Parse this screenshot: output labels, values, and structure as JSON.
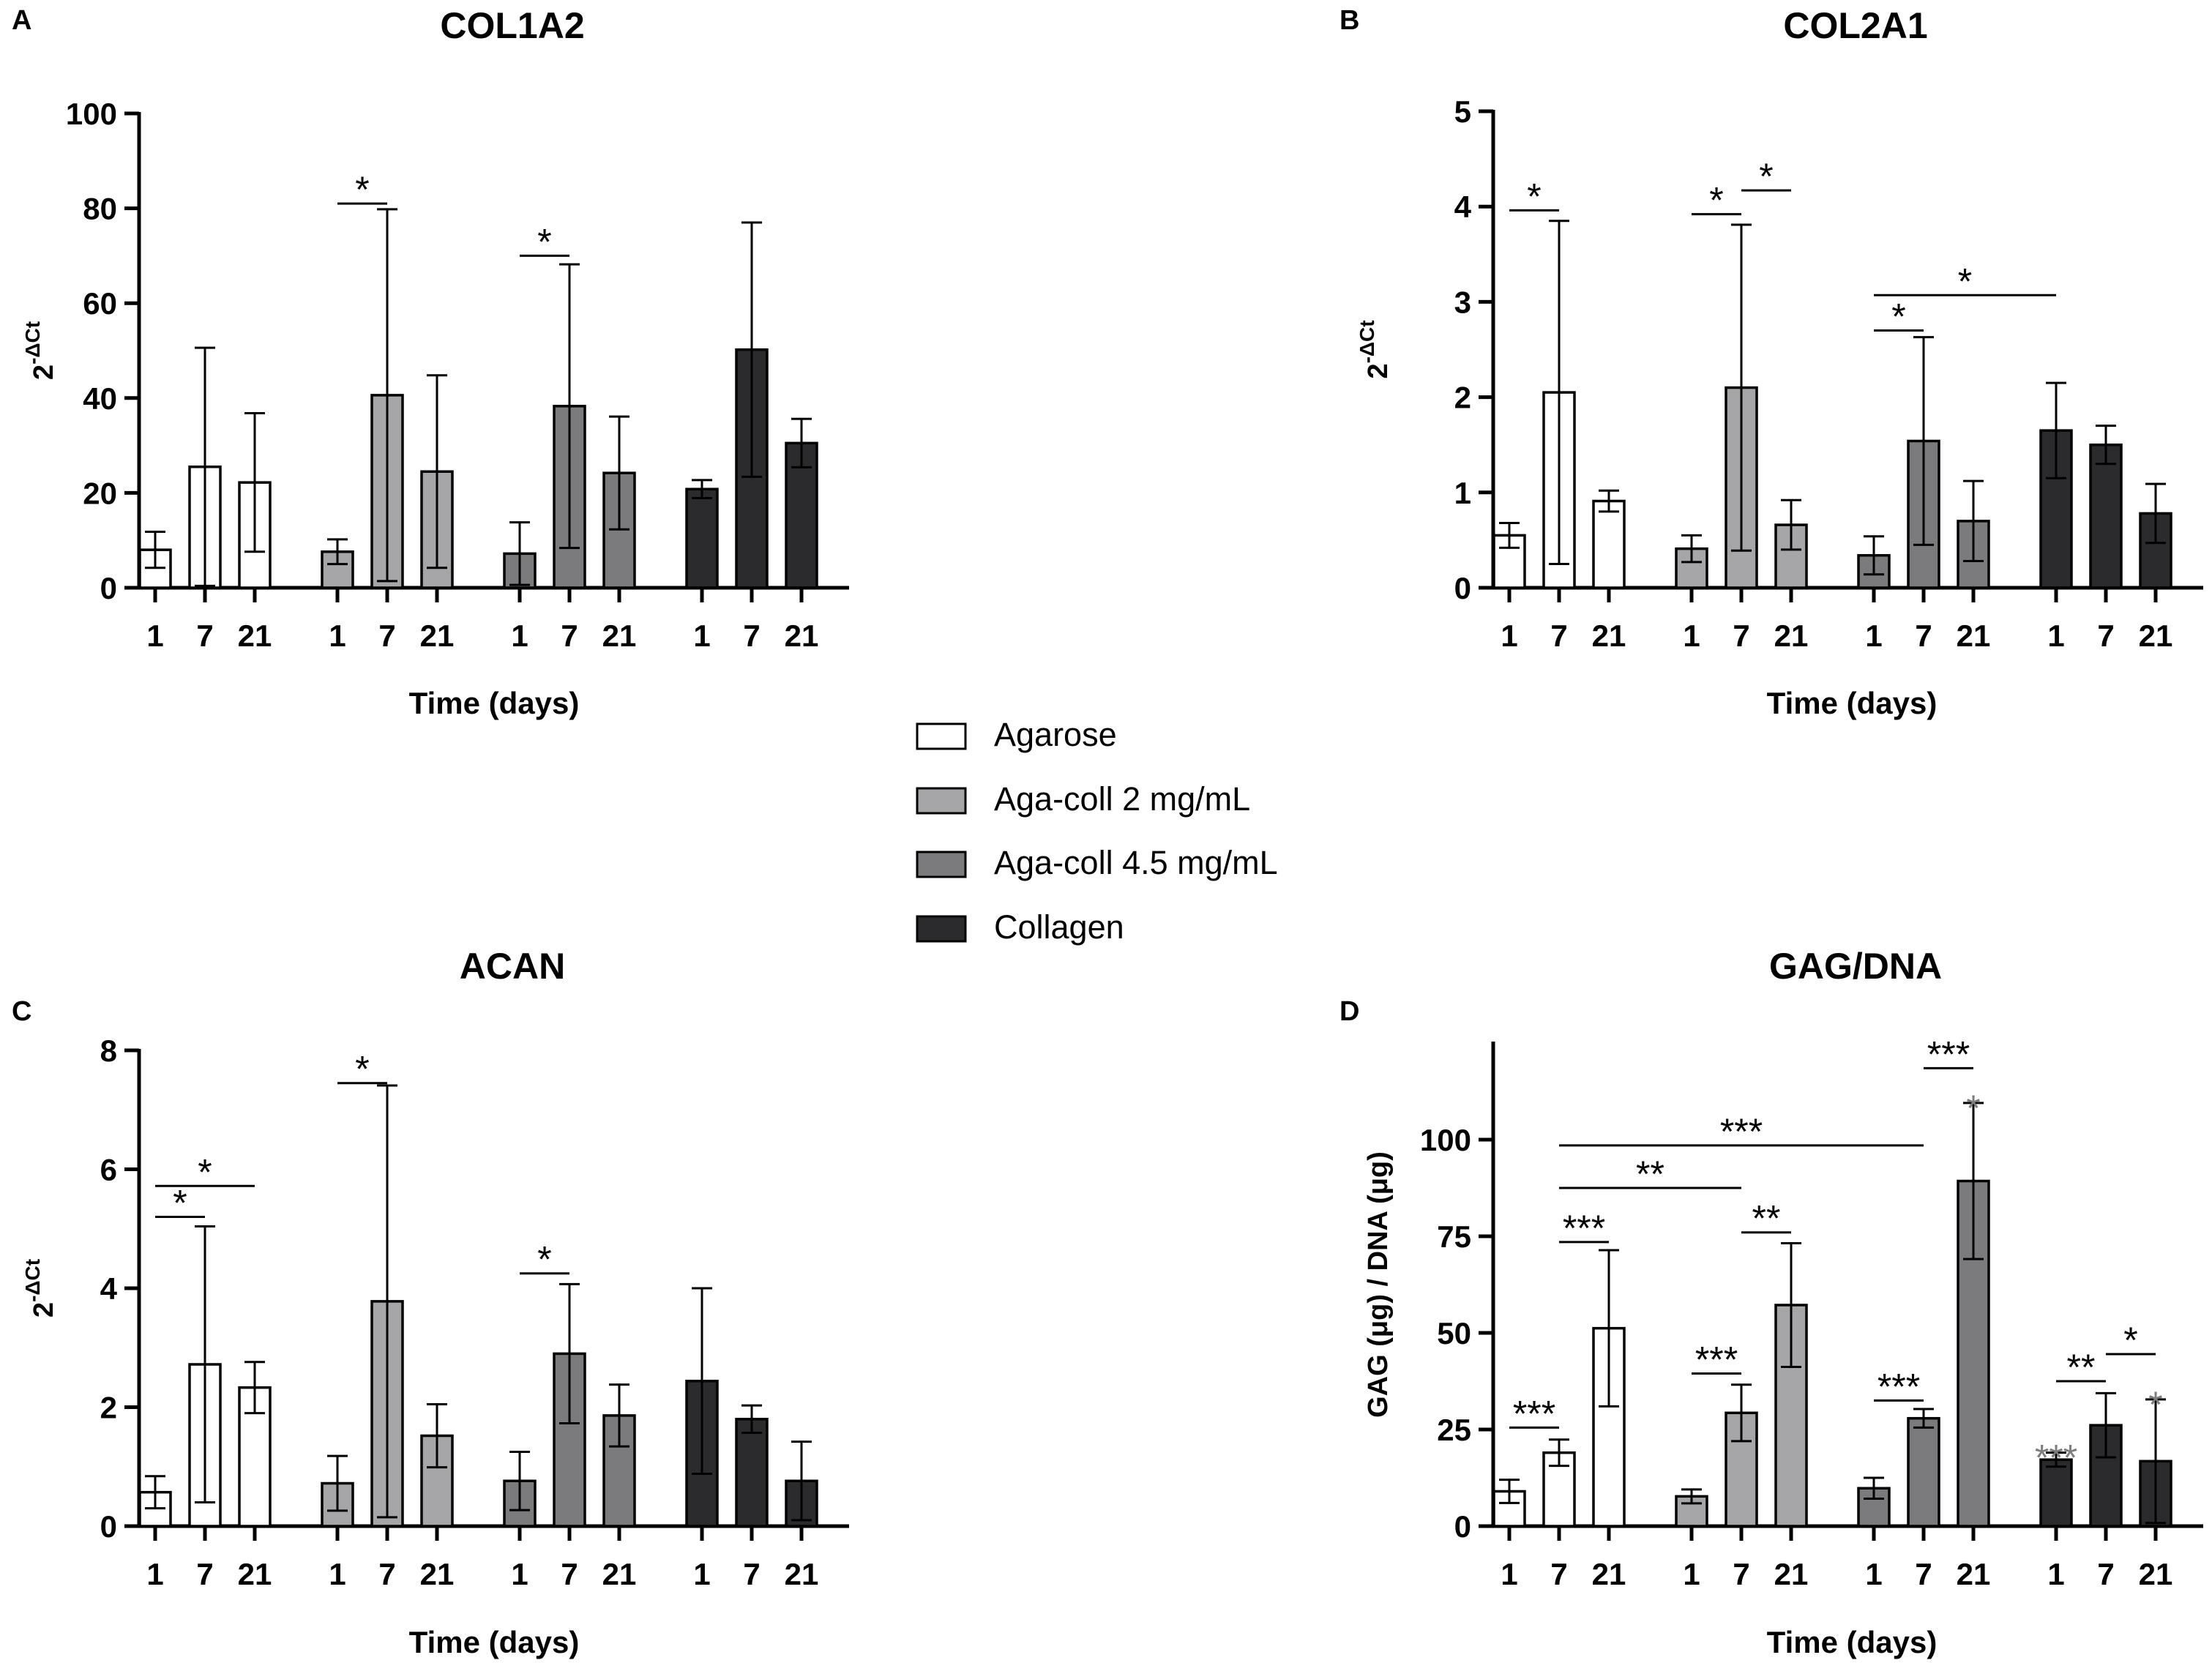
{
  "legend": {
    "items": [
      {
        "label": "Agarose",
        "color": "#ffffff"
      },
      {
        "label": "Aga-coll 2 mg/mL",
        "color": "#a6a6a8"
      },
      {
        "label": "Aga-coll 4.5 mg/mL",
        "color": "#7b7b7d"
      },
      {
        "label": "Collagen",
        "color": "#2b2b2d"
      }
    ]
  },
  "chart_data": [
    {
      "panel": "A",
      "type": "bar",
      "title": "COL1A2",
      "xlabel": "Time (days)",
      "ylabel": "2-ΔCt",
      "ylim": [
        0,
        100
      ],
      "yticks": [
        0,
        20,
        40,
        60,
        80,
        100
      ],
      "categories": [
        "1",
        "7",
        "21"
      ],
      "series": [
        {
          "name": "Agarose",
          "values": [
            8,
            25.5,
            22.2
          ],
          "errors": [
            3.8,
            25.1,
            14.6
          ]
        },
        {
          "name": "Aga-coll 2 mg/mL",
          "values": [
            7.6,
            40.6,
            24.5
          ],
          "errors": [
            2.6,
            39.2,
            20.3
          ]
        },
        {
          "name": "Aga-coll 4.5 mg/mL",
          "values": [
            7.2,
            38.3,
            24.2
          ],
          "errors": [
            6.6,
            29.9,
            11.9
          ]
        },
        {
          "name": "Collagen",
          "values": [
            20.8,
            50.2,
            30.5
          ],
          "errors": [
            1.9,
            26.8,
            5.1
          ]
        }
      ],
      "significance": [
        {
          "from": [
            1,
            0
          ],
          "to": [
            1,
            1
          ],
          "level": 81,
          "label": "*"
        },
        {
          "from": [
            2,
            0
          ],
          "to": [
            2,
            1
          ],
          "level": 70,
          "label": "*"
        }
      ]
    },
    {
      "panel": "B",
      "type": "bar",
      "title": "COL2A1",
      "xlabel": "Time (days)",
      "ylabel": "2-ΔCt",
      "ylim": [
        0,
        5
      ],
      "yticks": [
        0,
        1,
        2,
        3,
        4,
        5
      ],
      "categories": [
        "1",
        "7",
        "21"
      ],
      "series": [
        {
          "name": "Agarose",
          "values": [
            0.55,
            2.05,
            0.91
          ],
          "errors": [
            0.13,
            1.8,
            0.11
          ]
        },
        {
          "name": "Aga-coll 2 mg/mL",
          "values": [
            0.41,
            2.1,
            0.66
          ],
          "errors": [
            0.14,
            1.71,
            0.26
          ]
        },
        {
          "name": "Aga-coll 4.5 mg/mL",
          "values": [
            0.34,
            1.54,
            0.7
          ],
          "errors": [
            0.2,
            1.09,
            0.42
          ]
        },
        {
          "name": "Collagen",
          "values": [
            1.65,
            1.5,
            0.78
          ],
          "errors": [
            0.5,
            0.2,
            0.31
          ]
        }
      ],
      "significance": [
        {
          "from": [
            0,
            0
          ],
          "to": [
            0,
            1
          ],
          "level": 3.96,
          "label": "*"
        },
        {
          "from": [
            1,
            0
          ],
          "to": [
            1,
            1
          ],
          "level": 3.92,
          "label": "*"
        },
        {
          "from": [
            1,
            1
          ],
          "to": [
            1,
            2
          ],
          "level": 4.17,
          "label": "*"
        },
        {
          "from": [
            2,
            0
          ],
          "to": [
            2,
            1
          ],
          "level": 2.7,
          "label": "*"
        },
        {
          "from": [
            2,
            0
          ],
          "to": [
            3,
            0
          ],
          "level": 3.07,
          "label": "*"
        }
      ]
    },
    {
      "panel": "C",
      "type": "bar",
      "title": "ACAN",
      "xlabel": "Time (days)",
      "ylabel": "2-ΔCt",
      "ylim": [
        0,
        8
      ],
      "yticks": [
        0,
        2,
        4,
        6,
        8
      ],
      "categories": [
        "1",
        "7",
        "21"
      ],
      "series": [
        {
          "name": "Agarose",
          "values": [
            0.57,
            2.72,
            2.33
          ],
          "errors": [
            0.27,
            2.32,
            0.43
          ]
        },
        {
          "name": "Aga-coll 2 mg/mL",
          "values": [
            0.72,
            3.78,
            1.52
          ],
          "errors": [
            0.46,
            3.63,
            0.53
          ]
        },
        {
          "name": "Aga-coll 4.5 mg/mL",
          "values": [
            0.76,
            2.9,
            1.86
          ],
          "errors": [
            0.49,
            1.17,
            0.52
          ]
        },
        {
          "name": "Collagen",
          "values": [
            2.44,
            1.8,
            0.76
          ],
          "errors": [
            1.56,
            0.23,
            0.66
          ]
        }
      ],
      "significance": [
        {
          "from": [
            0,
            0
          ],
          "to": [
            0,
            1
          ],
          "level": 5.2,
          "label": "*"
        },
        {
          "from": [
            0,
            0
          ],
          "to": [
            0,
            2
          ],
          "level": 5.72,
          "label": "*"
        },
        {
          "from": [
            1,
            0
          ],
          "to": [
            1,
            1
          ],
          "level": 7.45,
          "label": "*"
        },
        {
          "from": [
            2,
            0
          ],
          "to": [
            2,
            1
          ],
          "level": 4.25,
          "label": "*"
        }
      ]
    },
    {
      "panel": "D",
      "type": "bar",
      "title": "GAG/DNA",
      "xlabel": "Time (days)",
      "ylabel": "GAG (μg) / DNA (μg)",
      "ylim": [
        0,
        125
      ],
      "yticks": [
        0,
        25,
        50,
        75,
        100
      ],
      "categories": [
        "1",
        "7",
        "21"
      ],
      "series": [
        {
          "name": "Agarose",
          "values": [
            9,
            19,
            51.2
          ],
          "errors": [
            3,
            3.4,
            20.2
          ]
        },
        {
          "name": "Aga-coll 2 mg/mL",
          "values": [
            7.7,
            29.3,
            57.2
          ],
          "errors": [
            1.8,
            7.3,
            16
          ]
        },
        {
          "name": "Aga-coll 4.5 mg/mL",
          "values": [
            9.8,
            27.9,
            89.3
          ],
          "errors": [
            2.7,
            2.4,
            20.2
          ]
        },
        {
          "name": "Collagen",
          "values": [
            17.2,
            26.1,
            16.8
          ],
          "errors": [
            1.8,
            8.3,
            16
          ]
        }
      ],
      "significance": [
        {
          "from": [
            0,
            0
          ],
          "to": [
            0,
            1
          ],
          "level": 25.5,
          "label": "***"
        },
        {
          "from": [
            0,
            1
          ],
          "to": [
            0,
            2
          ],
          "level": 73.5,
          "label": "***"
        },
        {
          "from": [
            1,
            0
          ],
          "to": [
            1,
            1
          ],
          "level": 39.5,
          "label": "***"
        },
        {
          "from": [
            1,
            1
          ],
          "to": [
            1,
            2
          ],
          "level": 76,
          "label": "**"
        },
        {
          "from": [
            2,
            0
          ],
          "to": [
            2,
            1
          ],
          "level": 32.5,
          "label": "***"
        },
        {
          "from": [
            2,
            1
          ],
          "to": [
            2,
            2
          ],
          "level": 118.5,
          "label": "***"
        },
        {
          "from": [
            0,
            1
          ],
          "to": [
            1,
            1
          ],
          "level": 87.5,
          "label": "**"
        },
        {
          "from": [
            0,
            1
          ],
          "to": [
            2,
            1
          ],
          "level": 98.5,
          "label": "***"
        },
        {
          "from": [
            3,
            0
          ],
          "to": [
            3,
            1
          ],
          "level": 37.5,
          "label": "**"
        },
        {
          "from": [
            3,
            1
          ],
          "to": [
            3,
            2
          ],
          "level": 44.5,
          "label": "*"
        }
      ],
      "bar_annotations": [
        {
          "bar": [
            2,
            2
          ],
          "label": "*",
          "color": "#7d7d7d"
        },
        {
          "bar": [
            3,
            0
          ],
          "label": "***",
          "color": "#7d7d7d"
        },
        {
          "bar": [
            3,
            2
          ],
          "label": "*",
          "color": "#7d7d7d"
        }
      ]
    }
  ]
}
